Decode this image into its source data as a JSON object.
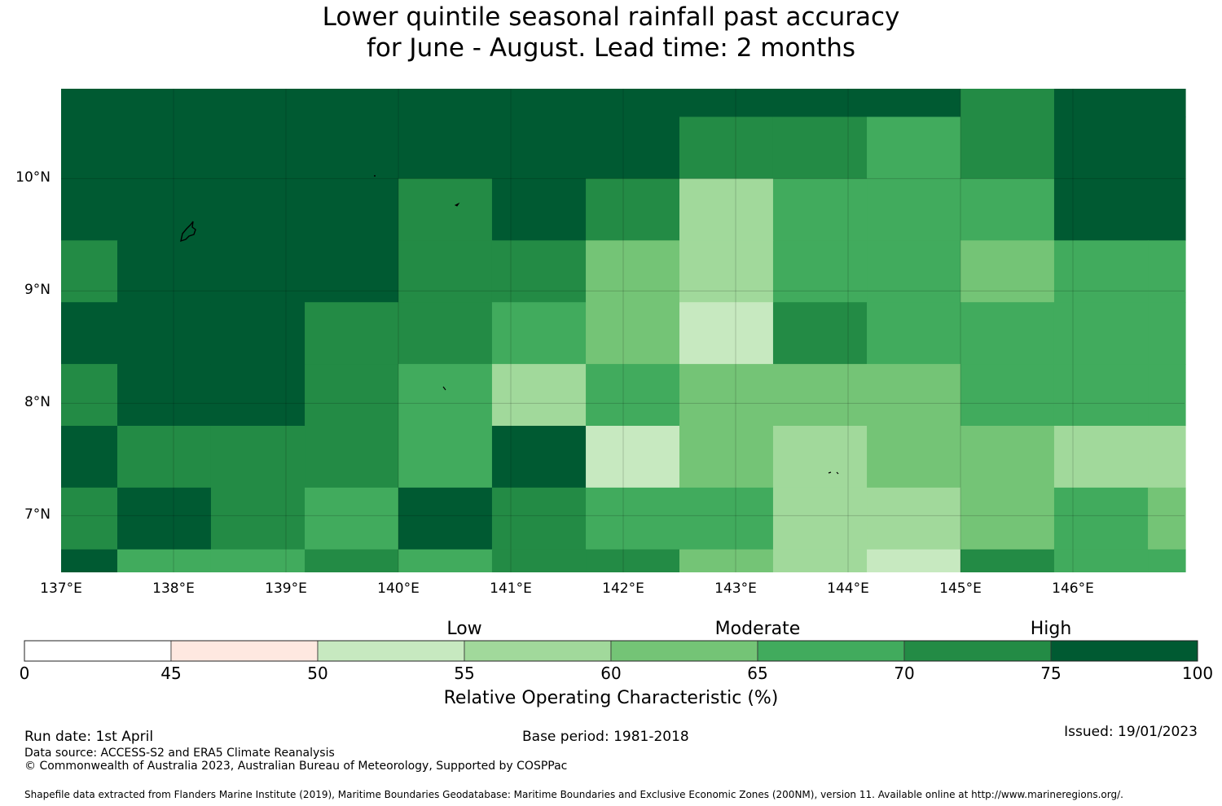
{
  "title": {
    "line1": "Lower quintile seasonal rainfall past accuracy",
    "line2": "for June - August. Lead time: 2 months"
  },
  "chart_data": {
    "type": "heatmap",
    "lon_range": [
      137.0,
      147.0
    ],
    "lat_range": [
      6.5,
      10.8
    ],
    "lon_edges": [
      137.0,
      137.5,
      138.333,
      139.167,
      140.0,
      140.833,
      141.667,
      142.5,
      143.333,
      144.167,
      145.0,
      145.833,
      146.667,
      147.0
    ],
    "lat_edges": [
      10.8,
      10.55,
      10.0,
      9.45,
      8.9,
      8.35,
      7.8,
      7.25,
      6.7,
      6.5
    ],
    "values_roc_percent": [
      [
        77,
        77,
        77,
        77,
        77,
        77,
        77,
        77,
        77,
        77,
        72,
        77,
        77
      ],
      [
        77,
        77,
        77,
        77,
        77,
        77,
        77,
        72,
        72,
        67,
        72,
        77,
        77
      ],
      [
        77,
        77,
        77,
        77,
        72,
        77,
        72,
        57,
        67,
        67,
        67,
        77,
        77
      ],
      [
        72,
        77,
        77,
        77,
        72,
        72,
        62,
        57,
        67,
        67,
        62,
        67,
        67
      ],
      [
        77,
        77,
        77,
        72,
        72,
        67,
        62,
        52,
        72,
        67,
        67,
        67,
        67
      ],
      [
        72,
        77,
        77,
        72,
        67,
        57,
        67,
        62,
        62,
        62,
        67,
        67,
        67
      ],
      [
        77,
        72,
        72,
        72,
        67,
        77,
        52,
        62,
        57,
        62,
        62,
        57,
        57
      ],
      [
        72,
        77,
        72,
        67,
        77,
        72,
        67,
        67,
        57,
        57,
        62,
        67,
        62
      ],
      [
        77,
        67,
        67,
        72,
        67,
        72,
        72,
        62,
        57,
        52,
        72,
        67,
        67
      ]
    ],
    "lat_ticks": [
      "10°N",
      "9°N",
      "8°N",
      "7°N"
    ],
    "lon_ticks": [
      "137°E",
      "138°E",
      "139°E",
      "140°E",
      "141°E",
      "142°E",
      "143°E",
      "144°E",
      "145°E",
      "146°E"
    ],
    "grid": true
  },
  "colorbar": {
    "bins": [
      {
        "from": 0,
        "to": 45,
        "color": "#ffffff"
      },
      {
        "from": 45,
        "to": 50,
        "color": "#fee8e0"
      },
      {
        "from": 50,
        "to": 55,
        "color": "#c7e9c0"
      },
      {
        "from": 55,
        "to": 60,
        "color": "#a1d99b"
      },
      {
        "from": 60,
        "to": 65,
        "color": "#74c476"
      },
      {
        "from": 65,
        "to": 70,
        "color": "#41ab5d"
      },
      {
        "from": 70,
        "to": 75,
        "color": "#238b45"
      },
      {
        "from": 75,
        "to": 100,
        "color": "#005a32"
      }
    ],
    "tick_labels": [
      "0",
      "45",
      "50",
      "55",
      "60",
      "65",
      "70",
      "75",
      "100"
    ],
    "levels": [
      "Low",
      "Moderate",
      "High"
    ],
    "label": "Relative Operating Characteristic (%)"
  },
  "footer": {
    "run_date": "Run date: 1st April",
    "base_period": "Base period: 1981-2018",
    "issued": "Issued: 19/01/2023",
    "data_source": "Data source: ACCESS-S2 and ERA5 Climate Reanalysis",
    "copyright": "© Commonwealth of Australia 2023, Australian Bureau of Meteorology, Supported by COSPPac",
    "shapefile": "Shapefile data extracted from Flanders Marine Institute (2019), Maritime Boundaries Geodatabase: Maritime Boundaries and Exclusive Economic Zones (200NM), version 11. Available online at http://www.marineregions.org/."
  }
}
